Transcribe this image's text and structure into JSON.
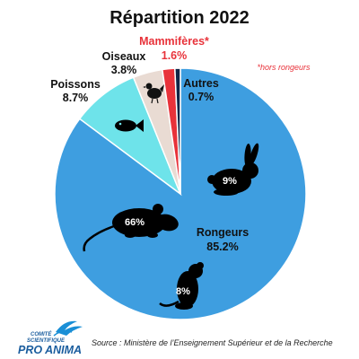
{
  "chart_data": {
    "type": "pie",
    "title": "Répartition 2022",
    "slices": [
      {
        "key": "rongeurs",
        "label": "Rongeurs",
        "value_label": "85.2%",
        "value": 85.2,
        "color": "#3e9ee0"
      },
      {
        "key": "poissons",
        "label": "Poissons",
        "value_label": "8.7%",
        "value": 8.7,
        "color": "#6ee3ea"
      },
      {
        "key": "oiseaux",
        "label": "Oiseaux",
        "value_label": "3.8%",
        "value": 3.8,
        "color": "#e9dbd3"
      },
      {
        "key": "mammiferes",
        "label": "Mammifères*",
        "value_label": "1.6%",
        "value": 1.6,
        "color": "#e8323a"
      },
      {
        "key": "autres",
        "label": "Autres",
        "value_label": "0.7%",
        "value": 0.7,
        "color": "#0f2547"
      }
    ],
    "rodent_breakdown": [
      {
        "key": "souris",
        "icon": "mouse-icon",
        "value_label": "66%",
        "value": 66
      },
      {
        "key": "lapin",
        "icon": "rabbit-icon",
        "value_label": "9%",
        "value": 9
      },
      {
        "key": "rat",
        "icon": "rat-icon",
        "value_label": "8%",
        "value": 8
      }
    ],
    "annotations": {
      "note": "*hors rongeurs"
    }
  },
  "source": "Source : Ministère de l’Enseignement Supérieur et de la Recherche",
  "logo": {
    "line1": "COMITÉ",
    "line2": "SCIENTIFIQUE",
    "line3": "PRO ANIMA"
  },
  "colors": {
    "accent": "#e8323a",
    "logo": "#1a5d9e"
  }
}
